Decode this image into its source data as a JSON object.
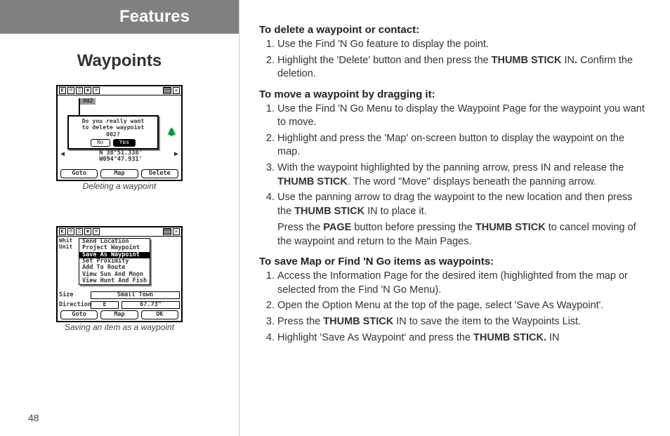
{
  "left": {
    "banner": "Features",
    "section_title": "Waypoints",
    "page_number": "48",
    "fig1": {
      "caption": "Deleting a waypoint",
      "top_icons": [
        "◧",
        "⊟",
        "⍐",
        "◉",
        "⊕"
      ],
      "flag_label": "002",
      "dialog_line1": "Do you really want",
      "dialog_line2": "to delete waypoint",
      "dialog_line3": "002?",
      "dialog_no": "No",
      "dialog_yes": "Yes",
      "coords_line1": "N 38°51.338'",
      "coords_line2": "W094°47.931'",
      "bottom_goto": "Goto",
      "bottom_map": "Map",
      "bottom_delete": "Delete"
    },
    "fig2": {
      "caption": "Saving an item as a waypoint",
      "left_whit": "Whit",
      "left_unit": "Unit",
      "menu_items": [
        "Send Location",
        "Project Waypoint",
        "Save As Waypoint",
        "Set Proximity",
        "Add To Route",
        "View Sun And Moon",
        "View Hunt And Fish"
      ],
      "menu_selected_index": 2,
      "size_label": "Size",
      "size_value": "Small Town",
      "dir_label": "Direction",
      "dir_value1": "E",
      "dir_value2": "67.73\"",
      "bottom_goto": "Goto",
      "bottom_map": "Map",
      "bottom_ok": "OK"
    }
  },
  "right": {
    "h1": "To delete a waypoint or contact:",
    "s1": [
      {
        "pre": "Use the Find 'N Go feature to display the point."
      },
      {
        "pre": "Highlight the 'Delete' button and then press the ",
        "b1": "THUMB STICK",
        "mid": " IN",
        "b2": ".",
        "post": "  Confirm the deletion."
      }
    ],
    "h2": "To move a waypoint by dragging it:",
    "s2": [
      {
        "pre": "Use the Find 'N Go Menu to display the Waypoint Page for the waypoint you want to move."
      },
      {
        "pre": "Highlight and press the 'Map' on-screen button to display the waypoint on the map."
      },
      {
        "pre": "With the waypoint highlighted by the panning arrow, press IN and release the ",
        "b1": "THUMB STICK",
        "post": ".  The word \"Move\" displays beneath the panning arrow."
      },
      {
        "pre": "Use the panning arrow to drag the waypoint to the new location and then press the ",
        "b1": "THUMB STICK",
        "post": " IN to place it.",
        "cont_pre": "Press the ",
        "cont_b1": "PAGE",
        "cont_mid": " button before pressing the ",
        "cont_b2": "THUMB STICK",
        "cont_post": " to cancel moving of the waypoint and return to the Main Pages."
      }
    ],
    "h3": "To save Map or Find 'N Go items as waypoints:",
    "s3": [
      {
        "pre": "Access the Information Page for the desired item (highlighted from the map or selected from the Find 'N Go Menu)."
      },
      {
        "pre": "Open the Option Menu at the top of the page, select 'Save As Waypoint'."
      },
      {
        "pre": "Press the ",
        "b1": "THUMB STICK",
        "post": " IN to save the item to the Waypoints List."
      },
      {
        "pre": "Highlight 'Save As Waypoint' and press the ",
        "b1": "THUMB STICK",
        "post": " IN",
        "b2": "."
      }
    ]
  }
}
